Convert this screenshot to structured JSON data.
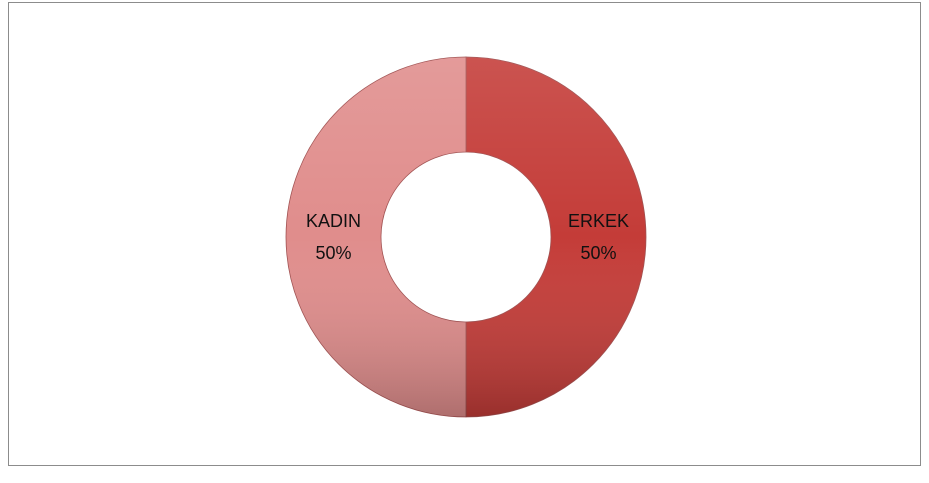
{
  "chart_data": {
    "type": "donut",
    "categories": [
      "ERKEK",
      "KADIN"
    ],
    "values": [
      50,
      50
    ],
    "value_labels": [
      "50%",
      "50%"
    ],
    "colors": [
      "#c43c38",
      "#e08d8c"
    ]
  }
}
